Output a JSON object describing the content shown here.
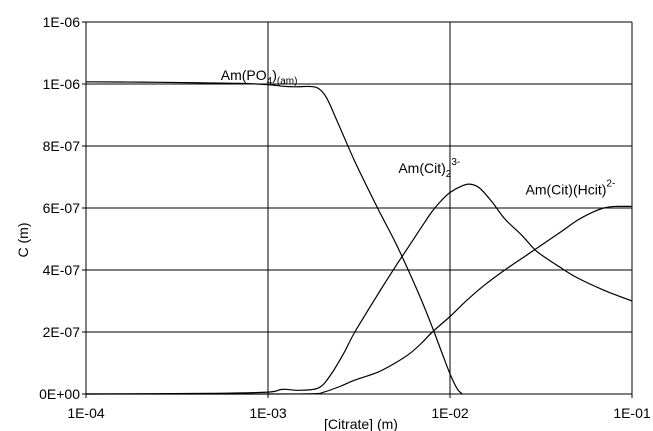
{
  "chart_data": {
    "type": "line",
    "title": "",
    "xlabel": "[Citrate] (m)",
    "ylabel": "C (m)",
    "x_scale": "log",
    "xlim": [
      0.0001,
      0.1
    ],
    "ylim": [
      0,
      1.2e-06
    ],
    "grid": true,
    "legend": "none",
    "x_ticks": [
      {
        "value": 0.0001,
        "label": "1E-04"
      },
      {
        "value": 0.001,
        "label": "1E-03"
      },
      {
        "value": 0.01,
        "label": "1E-02"
      },
      {
        "value": 0.1,
        "label": "1E-01"
      }
    ],
    "y_ticks": [
      {
        "value": 0,
        "label": "0E+00"
      },
      {
        "value": 2e-07,
        "label": "2E-07"
      },
      {
        "value": 4e-07,
        "label": "4E-07"
      },
      {
        "value": 6e-07,
        "label": "6E-07"
      },
      {
        "value": 8e-07,
        "label": "8E-07"
      },
      {
        "value": 1e-06,
        "label": "1E-06"
      },
      {
        "value": 1.2e-06,
        "label": "1E-06"
      }
    ],
    "series": [
      {
        "points": [
          [
            0.0001,
            1.007e-06
          ],
          [
            0.0002,
            1.006e-06
          ],
          [
            0.0004,
            1.004e-06
          ],
          [
            0.0007,
            1.002e-06
          ],
          [
            0.001,
            9.98e-07
          ],
          [
            0.0012,
            9.93e-07
          ],
          [
            0.0014,
            9.91e-07
          ],
          [
            0.0017,
            9.92e-07
          ],
          [
            0.0019,
            9.85e-07
          ],
          [
            0.0021,
            9.55e-07
          ],
          [
            0.0024,
            8.8e-07
          ],
          [
            0.003,
            7.5e-07
          ],
          [
            0.004,
            6e-07
          ],
          [
            0.005,
            4.9e-07
          ],
          [
            0.006,
            3.9e-07
          ],
          [
            0.007,
            3e-07
          ],
          [
            0.008,
            2.15e-07
          ],
          [
            0.009,
            1.35e-07
          ],
          [
            0.01,
            6.5e-08
          ],
          [
            0.011,
            1.5e-08
          ],
          [
            0.0117,
            0
          ]
        ]
      },
      {
        "points": [
          [
            0.0001,
            0
          ],
          [
            0.0005,
            2e-09
          ],
          [
            0.001,
            6e-09
          ],
          [
            0.0012,
            1.5e-08
          ],
          [
            0.0015,
            1.2e-08
          ],
          [
            0.0019,
            2e-08
          ],
          [
            0.0022,
            6e-08
          ],
          [
            0.0026,
            1.3e-07
          ],
          [
            0.003,
            2e-07
          ],
          [
            0.004,
            3.2e-07
          ],
          [
            0.005,
            4.1e-07
          ],
          [
            0.006,
            4.8e-07
          ],
          [
            0.007,
            5.4e-07
          ],
          [
            0.008,
            5.9e-07
          ],
          [
            0.009,
            6.25e-07
          ],
          [
            0.01,
            6.5e-07
          ],
          [
            0.0115,
            6.7e-07
          ],
          [
            0.0128,
            6.77e-07
          ],
          [
            0.0145,
            6.65e-07
          ],
          [
            0.017,
            6.2e-07
          ],
          [
            0.02,
            5.65e-07
          ],
          [
            0.025,
            5.1e-07
          ],
          [
            0.03,
            4.6e-07
          ],
          [
            0.04,
            4.1e-07
          ],
          [
            0.05,
            3.75e-07
          ],
          [
            0.07,
            3.35e-07
          ],
          [
            0.1,
            3e-07
          ]
        ]
      },
      {
        "points": [
          [
            0.0001,
            0
          ],
          [
            0.001,
            0
          ],
          [
            0.0018,
            1e-09
          ],
          [
            0.002,
            5e-09
          ],
          [
            0.0025,
            2.5e-08
          ],
          [
            0.003,
            4.5e-08
          ],
          [
            0.004,
            7e-08
          ],
          [
            0.005,
            1e-07
          ],
          [
            0.006,
            1.3e-07
          ],
          [
            0.007,
            1.65e-07
          ],
          [
            0.008,
            2e-07
          ],
          [
            0.01,
            2.5e-07
          ],
          [
            0.012,
            2.95e-07
          ],
          [
            0.015,
            3.45e-07
          ],
          [
            0.02,
            4e-07
          ],
          [
            0.03,
            4.7e-07
          ],
          [
            0.04,
            5.2e-07
          ],
          [
            0.05,
            5.6e-07
          ],
          [
            0.06,
            5.85e-07
          ],
          [
            0.07,
            6e-07
          ],
          [
            0.08,
            6.05e-07
          ],
          [
            0.1,
            6.05e-07
          ]
        ]
      }
    ],
    "annotations": [
      {
        "base": "Am(PO",
        "sub1": "4",
        "mid": ")",
        "sub2": "(am)",
        "sup": "",
        "x": 0.00055,
        "y": 1e-06
      },
      {
        "base": "Am(Cit)",
        "sub1": "2",
        "mid": "",
        "sub2": "",
        "sup": "3-",
        "x": 0.0052,
        "y": 7e-07
      },
      {
        "base": "Am(Cit)(Hcit)",
        "sub1": "",
        "mid": "",
        "sub2": "",
        "sup": "2-",
        "x": 0.026,
        "y": 6.3e-07
      }
    ]
  }
}
